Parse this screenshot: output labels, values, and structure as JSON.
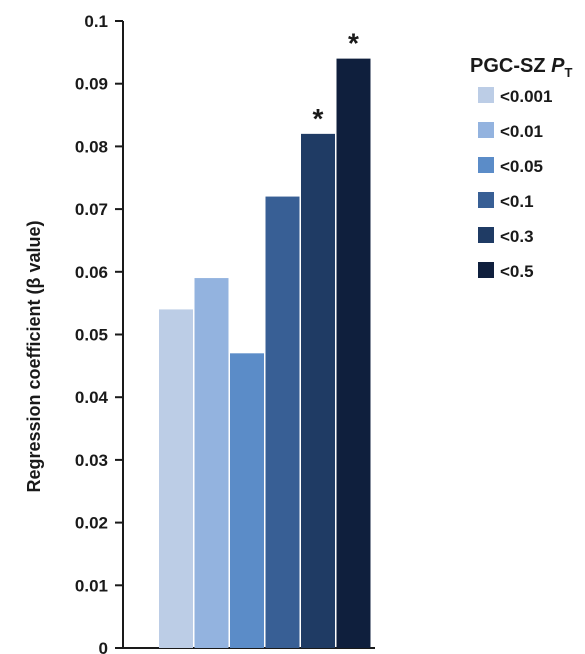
{
  "chart_data": {
    "type": "bar",
    "title": "",
    "xlabel": "",
    "ylabel": "Regression coefficient (β value)",
    "ylim": [
      0,
      0.1
    ],
    "yticks": [
      "0",
      "0.01",
      "0.02",
      "0.03",
      "0.04",
      "0.05",
      "0.06",
      "0.07",
      "0.08",
      "0.09",
      "0.1"
    ],
    "grid": false,
    "legend_position": "right",
    "legend_title": {
      "main": "PGC-SZ ",
      "italic": "P",
      "subscript": "T"
    },
    "series": [
      {
        "name": "<0.001",
        "value": 0.054,
        "color": "#bccde6",
        "significance": ""
      },
      {
        "name": "<0.01",
        "value": 0.059,
        "color": "#93b3df",
        "significance": ""
      },
      {
        "name": "<0.05",
        "value": 0.047,
        "color": "#5b8cc8",
        "significance": ""
      },
      {
        "name": "<0.1",
        "value": 0.072,
        "color": "#385f95",
        "significance": ""
      },
      {
        "name": "<0.3",
        "value": 0.082,
        "color": "#1f3b64",
        "significance": "*"
      },
      {
        "name": "<0.5",
        "value": 0.094,
        "color": "#0f1f3d",
        "significance": "*"
      }
    ]
  }
}
